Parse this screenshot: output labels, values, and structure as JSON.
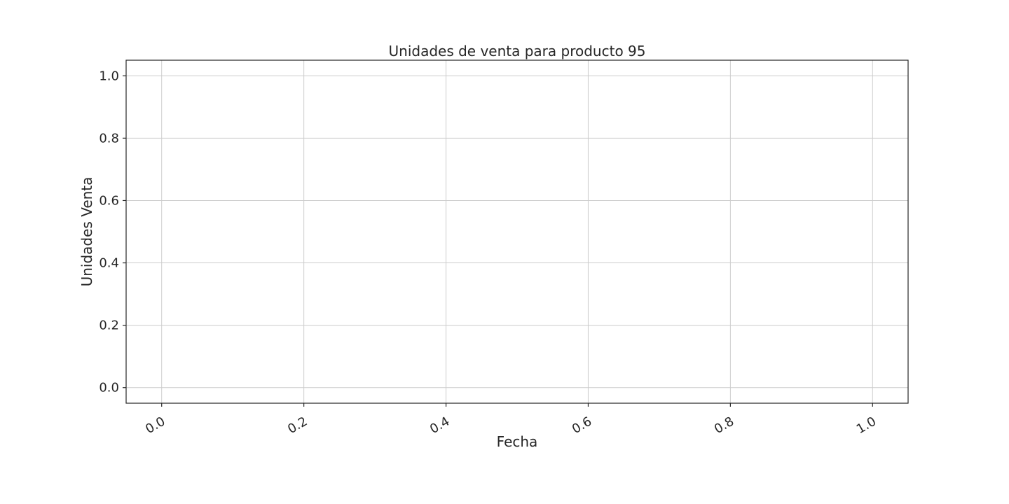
{
  "chart_data": {
    "type": "line",
    "title": "Unidades de venta para producto 95",
    "xlabel": "Fecha",
    "ylabel": "Unidades Venta",
    "xlim": [
      -0.05,
      1.05
    ],
    "ylim": [
      -0.05,
      1.05
    ],
    "x_ticks": [
      "0.0",
      "0.2",
      "0.4",
      "0.6",
      "0.8",
      "1.0"
    ],
    "y_ticks": [
      "0.0",
      "0.2",
      "0.4",
      "0.6",
      "0.8",
      "1.0"
    ],
    "x_tick_values": [
      0.0,
      0.2,
      0.4,
      0.6,
      0.8,
      1.0
    ],
    "y_tick_values": [
      0.0,
      0.2,
      0.4,
      0.6,
      0.8,
      1.0
    ],
    "grid": true,
    "series": []
  },
  "colors": {
    "text": "#262626",
    "grid": "#cccccc",
    "frame": "#262626",
    "background": "#ffffff"
  }
}
